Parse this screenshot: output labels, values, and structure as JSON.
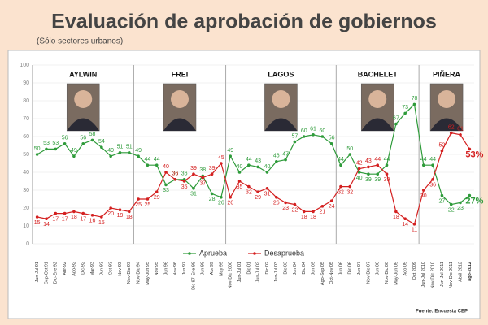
{
  "chart_data": {
    "type": "line",
    "title": "Evaluación de aprobación de gobiernos",
    "subtitle": "(Sólo sectores urbanos)",
    "source": "Fuente: Encuesta CEP",
    "panels": [
      "AYLWIN",
      "FREI",
      "LAGOS",
      "BACHELET",
      "PIÑERA"
    ],
    "categories": [
      "Jun-Jul 91",
      "Sep-Oct 91",
      "Dic-Ene 92",
      "Abr-92",
      "Ago-92",
      "Dic-92",
      "Mar-93",
      "Jun-93",
      "Oct-93",
      "Nov-93",
      "Nov-Dic 93",
      "Nov-Dic 94",
      "May-Jun 95",
      "Nov 95",
      "Jun 96",
      "Nov 96",
      "Jun 97",
      "Dic 97-Ene 98",
      "Jun 98",
      "Abr 99",
      "May 99",
      "Nov-Dic 2000",
      "Jun-Jul 01",
      "Dic 01",
      "Jun-Jul 02",
      "Dic 02",
      "Jun-Jul 03",
      "Dic 03",
      "Jun 04",
      "Dic 04",
      "Jun 05",
      "Ago-Sep 05",
      "Oct-Nov 05",
      "Jun 06",
      "Dic 06",
      "Jun 07",
      "Nov-Dic 07",
      "Jun 08",
      "Nov-Dic 08",
      "May-Jun 09",
      "Ago 09",
      "Oct 2009",
      "Jun-Jul 2010",
      "Nov-Dic 2010",
      "Jun-Jul 2011",
      "Nov-Dic 2011",
      "Abril 2012",
      "ago-2012"
    ],
    "series": [
      {
        "name": "Aprueba",
        "color": "#2e9b3a",
        "values": [
          50,
          53,
          53,
          56,
          49,
          56,
          58,
          54,
          49,
          51,
          51,
          49,
          44,
          44,
          33,
          36,
          36,
          31,
          38,
          28,
          26,
          49,
          40,
          44,
          43,
          40,
          46,
          47,
          57,
          60,
          61,
          60,
          56,
          44,
          50,
          40,
          39,
          39,
          44,
          67,
          73,
          78,
          44,
          44,
          27,
          22,
          23,
          27
        ],
        "value_labels": [
          "50",
          "53",
          "53",
          "56",
          "49",
          "56",
          "58",
          "54",
          "49",
          "51",
          "51",
          "49",
          "44",
          "44",
          "33",
          "36",
          "36",
          "31",
          "38",
          "28",
          "26",
          "49",
          "40",
          "44",
          "43",
          "40",
          "46",
          "47",
          "57",
          "60",
          "61",
          "60",
          "56",
          "44",
          "50",
          "40",
          "39",
          "39",
          "44",
          "67",
          "73",
          "78",
          "44",
          "44",
          "27",
          "22",
          "23",
          "27%"
        ]
      },
      {
        "name": "Desaprueba",
        "color": "#d42020",
        "values": [
          15,
          14,
          17,
          17,
          18,
          17,
          16,
          15,
          20,
          19,
          18,
          25,
          25,
          29,
          40,
          36,
          35,
          39,
          37,
          39,
          45,
          26,
          35,
          32,
          29,
          31,
          26,
          23,
          22,
          18,
          18,
          21,
          24,
          32,
          32,
          42,
          43,
          44,
          39,
          18,
          14,
          11,
          30,
          36,
          52,
          62,
          61,
          53
        ],
        "value_labels": [
          "15",
          "14",
          "17",
          "17",
          "18",
          "17",
          "16",
          "15",
          "20",
          "19",
          "18",
          "25",
          "25",
          "29",
          "40",
          "36",
          "35",
          "39",
          "37",
          "39",
          "45",
          "26",
          "35",
          "32",
          "29",
          "31",
          "26",
          "23",
          "22",
          "18",
          "18",
          "21",
          "24",
          "32",
          "32",
          "42",
          "43",
          "44",
          "39",
          "18",
          "14",
          "11",
          "30",
          "36",
          "52",
          "62",
          "61",
          "53%"
        ]
      }
    ],
    "ylim": [
      0,
      100
    ],
    "yticks": [
      0,
      10,
      20,
      30,
      40,
      50,
      60,
      70,
      80,
      90,
      100
    ],
    "grid": true
  }
}
